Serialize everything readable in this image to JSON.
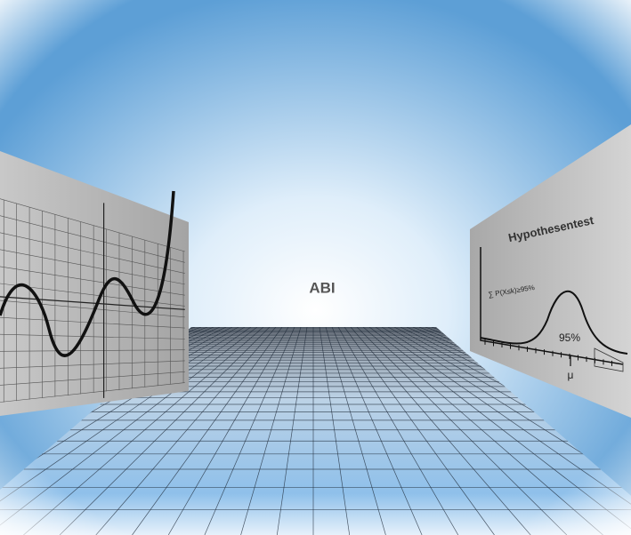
{
  "title": "ABI",
  "panel": {
    "title": "Hypothesentest",
    "formula": "∑ P(X≤k)≥95%",
    "percent": "95%",
    "axis_label": "μ"
  }
}
